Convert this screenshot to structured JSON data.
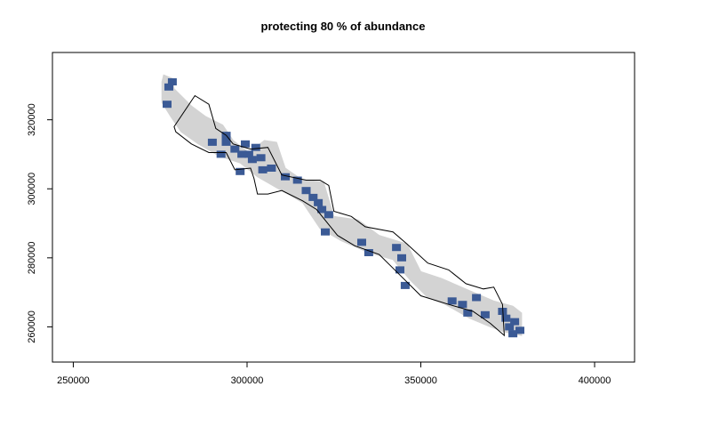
{
  "chart_data": {
    "type": "map",
    "title": "protecting 80 % of abundance",
    "xlabel": "",
    "ylabel": "",
    "xlim": [
      244000,
      411500
    ],
    "ylim": [
      249800,
      339500
    ],
    "x_ticks": [
      250000,
      300000,
      350000,
      400000
    ],
    "y_ticks": [
      260000,
      280000,
      300000,
      320000
    ],
    "x_tick_labels": [
      "250000",
      "300000",
      "350000",
      "400000"
    ],
    "y_tick_labels": [
      "260000",
      "280000",
      "300000",
      "320000"
    ],
    "grid": false,
    "legend": "none",
    "colors": {
      "habitat": "#d3d3d3",
      "protected": "#3b5a95",
      "boundary": "#000000"
    },
    "layers": {
      "habitat_extent": [
        [
          276000,
          333000
        ],
        [
          278500,
          332000
        ],
        [
          279000,
          329000
        ],
        [
          284000,
          324000
        ],
        [
          288000,
          321000
        ],
        [
          293000,
          318500
        ],
        [
          296000,
          314000
        ],
        [
          300500,
          310500
        ],
        [
          305000,
          314000
        ],
        [
          308500,
          313500
        ],
        [
          311000,
          306000
        ],
        [
          316000,
          302500
        ],
        [
          322000,
          302000
        ],
        [
          325000,
          292000
        ],
        [
          332000,
          291000
        ],
        [
          338000,
          286500
        ],
        [
          346000,
          284000
        ],
        [
          350000,
          276000
        ],
        [
          356000,
          274000
        ],
        [
          364000,
          270500
        ],
        [
          371000,
          267500
        ],
        [
          376500,
          266000
        ],
        [
          379000,
          264000
        ],
        [
          379000,
          257500
        ],
        [
          374000,
          258500
        ],
        [
          370000,
          260000
        ],
        [
          364000,
          262500
        ],
        [
          357000,
          266500
        ],
        [
          352000,
          268500
        ],
        [
          347000,
          273500
        ],
        [
          342000,
          279500
        ],
        [
          335000,
          281500
        ],
        [
          327000,
          285000
        ],
        [
          321000,
          288500
        ],
        [
          316000,
          296000
        ],
        [
          309000,
          300000
        ],
        [
          303000,
          303500
        ],
        [
          298000,
          307500
        ],
        [
          292000,
          309500
        ],
        [
          286000,
          313000
        ],
        [
          281000,
          316500
        ],
        [
          278000,
          321000
        ],
        [
          275500,
          325000
        ],
        [
          275500,
          331000
        ]
      ],
      "boundary_polygon": [
        [
          279000,
          318000
        ],
        [
          285000,
          327000
        ],
        [
          289000,
          324500
        ],
        [
          291000,
          317500
        ],
        [
          294000,
          315500
        ],
        [
          296000,
          313000
        ],
        [
          301000,
          311500
        ],
        [
          306000,
          312000
        ],
        [
          310000,
          304000
        ],
        [
          317000,
          302500
        ],
        [
          321000,
          302500
        ],
        [
          323500,
          301000
        ],
        [
          325000,
          293500
        ],
        [
          330000,
          292000
        ],
        [
          334000,
          289000
        ],
        [
          342000,
          287500
        ],
        [
          346000,
          284000
        ],
        [
          352000,
          278500
        ],
        [
          358000,
          276500
        ],
        [
          363000,
          272500
        ],
        [
          368000,
          271000
        ],
        [
          371000,
          271500
        ],
        [
          373500,
          266500
        ],
        [
          374000,
          257500
        ],
        [
          370000,
          261000
        ],
        [
          365000,
          264500
        ],
        [
          358000,
          266500
        ],
        [
          350000,
          269000
        ],
        [
          344000,
          275000
        ],
        [
          338000,
          281000
        ],
        [
          331000,
          283500
        ],
        [
          326000,
          286500
        ],
        [
          320000,
          294000
        ],
        [
          316000,
          296500
        ],
        [
          310000,
          299500
        ],
        [
          306000,
          298500
        ],
        [
          303000,
          298500
        ],
        [
          302000,
          303000
        ],
        [
          301000,
          306000
        ],
        [
          296500,
          305500
        ],
        [
          294000,
          310500
        ],
        [
          289000,
          310500
        ],
        [
          284000,
          313000
        ],
        [
          279500,
          316500
        ]
      ],
      "protected_units": [
        [
          277500,
          329500
        ],
        [
          278500,
          331000
        ],
        [
          277000,
          324500
        ],
        [
          290000,
          313500
        ],
        [
          292500,
          310000
        ],
        [
          294000,
          313500
        ],
        [
          294000,
          315500
        ],
        [
          296500,
          311500
        ],
        [
          298500,
          310000
        ],
        [
          299500,
          313000
        ],
        [
          300500,
          310000
        ],
        [
          301500,
          308500
        ],
        [
          302500,
          312000
        ],
        [
          304000,
          309000
        ],
        [
          298000,
          305000
        ],
        [
          304500,
          305500
        ],
        [
          307000,
          306000
        ],
        [
          311000,
          303500
        ],
        [
          314500,
          302500
        ],
        [
          317000,
          299500
        ],
        [
          319000,
          297500
        ],
        [
          320500,
          296000
        ],
        [
          321500,
          294000
        ],
        [
          323500,
          292500
        ],
        [
          322500,
          287500
        ],
        [
          333000,
          284500
        ],
        [
          335000,
          281500
        ],
        [
          343000,
          283000
        ],
        [
          344500,
          280000
        ],
        [
          344000,
          276500
        ],
        [
          345500,
          272000
        ],
        [
          359000,
          267500
        ],
        [
          362000,
          266500
        ],
        [
          363500,
          264000
        ],
        [
          366000,
          268500
        ],
        [
          368500,
          263500
        ],
        [
          373500,
          264500
        ],
        [
          374500,
          262500
        ],
        [
          375500,
          260000
        ],
        [
          377000,
          261500
        ],
        [
          378500,
          259000
        ],
        [
          376500,
          258000
        ]
      ]
    }
  }
}
